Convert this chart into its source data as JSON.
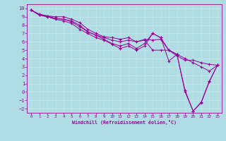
{
  "xlabel": "Windchill (Refroidissement éolien,°C)",
  "bg_color": "#b0dde4",
  "line_color": "#990099",
  "grid_color": "#c8e8ee",
  "xlim": [
    -0.5,
    23.5
  ],
  "ylim": [
    -2.5,
    10.5
  ],
  "xticks": [
    0,
    1,
    2,
    3,
    4,
    5,
    6,
    7,
    8,
    9,
    10,
    11,
    12,
    13,
    14,
    15,
    16,
    17,
    18,
    19,
    20,
    21,
    22,
    23
  ],
  "yticks": [
    10,
    9,
    8,
    7,
    6,
    5,
    4,
    3,
    2,
    1,
    0,
    -1,
    -2
  ],
  "lines": [
    [
      0,
      9.8,
      1,
      9.3,
      2,
      9.1,
      3,
      9.0,
      4,
      9.0,
      5,
      8.7,
      6,
      8.3,
      7,
      7.5,
      8,
      7.0,
      9,
      6.6,
      10,
      6.5,
      11,
      6.3,
      12,
      6.5,
      13,
      6.0,
      14,
      6.3,
      15,
      6.2,
      16,
      6.3,
      17,
      5.0,
      18,
      4.3,
      19,
      3.8,
      20,
      3.8,
      21,
      3.5,
      22,
      3.3,
      23,
      3.2
    ],
    [
      0,
      9.8,
      1,
      9.2,
      2,
      9.0,
      3,
      8.8,
      4,
      8.7,
      5,
      8.4,
      6,
      7.8,
      7,
      7.2,
      8,
      6.8,
      9,
      6.3,
      10,
      5.8,
      11,
      5.5,
      12,
      5.8,
      13,
      5.2,
      14,
      5.8,
      15,
      7.0,
      16,
      6.5,
      17,
      3.7,
      18,
      4.5,
      19,
      0.2,
      20,
      -2.3,
      21,
      -1.2,
      22,
      1.3,
      23,
      3.2
    ],
    [
      0,
      9.8,
      1,
      9.2,
      2,
      9.0,
      3,
      8.7,
      4,
      8.5,
      5,
      8.2,
      6,
      7.5,
      7,
      7.0,
      8,
      6.5,
      9,
      6.2,
      10,
      5.7,
      11,
      5.2,
      12,
      5.5,
      13,
      5.0,
      14,
      5.5,
      15,
      7.0,
      16,
      6.5,
      17,
      5.0,
      18,
      4.5,
      19,
      0.0,
      20,
      -2.3,
      21,
      -1.3,
      22,
      1.2,
      23,
      3.2
    ],
    [
      0,
      9.8,
      1,
      9.3,
      2,
      9.1,
      3,
      8.8,
      4,
      8.7,
      5,
      8.5,
      6,
      8.0,
      7,
      7.2,
      8,
      6.8,
      9,
      6.5,
      10,
      6.2,
      11,
      6.0,
      12,
      6.2,
      13,
      6.0,
      14,
      6.2,
      15,
      5.0,
      16,
      5.0,
      17,
      5.0,
      18,
      4.5,
      19,
      4.0,
      20,
      3.5,
      21,
      3.0,
      22,
      2.5,
      23,
      3.2
    ]
  ]
}
